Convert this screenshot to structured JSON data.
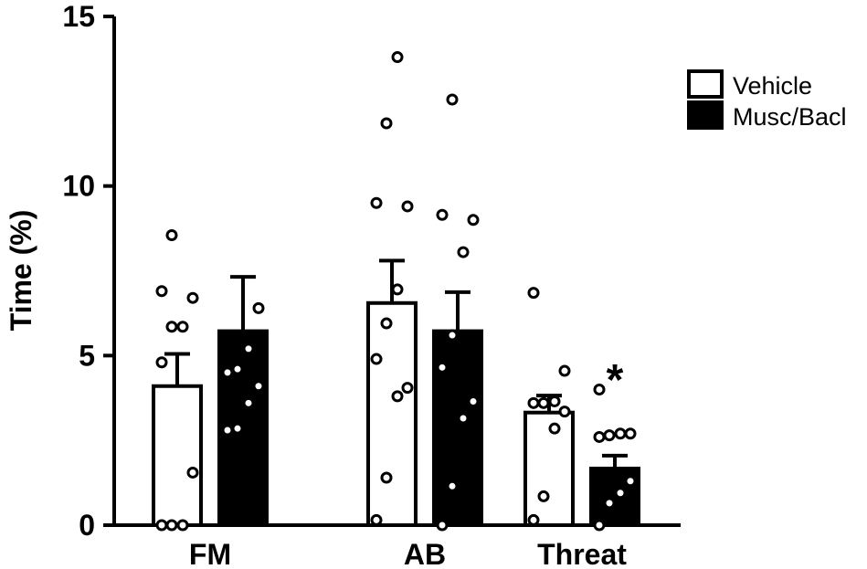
{
  "chart_data": {
    "type": "bar",
    "ylabel": "Time (%)",
    "xlabel": "",
    "ylim": [
      0,
      15
    ],
    "yticks": [
      0,
      5,
      10,
      15
    ],
    "categories": [
      "FM",
      "AB",
      "Threat"
    ],
    "series": [
      {
        "name": "Vehicle",
        "fill": "#ffffff",
        "values": [
          4.1,
          6.55,
          3.32
        ],
        "sem": [
          0.95,
          1.25,
          0.5
        ],
        "points": [
          [
            0,
            0,
            0,
            1.55,
            4.8,
            5.85,
            5.85,
            6.7,
            6.9,
            8.55
          ],
          [
            0.15,
            1.4,
            3.8,
            4.05,
            4.9,
            5.95,
            6.95,
            9.4,
            9.5,
            11.85,
            13.8
          ],
          [
            0.15,
            0.85,
            2.85,
            3.35,
            3.6,
            3.6,
            3.65,
            4.55,
            6.85
          ]
        ]
      },
      {
        "name": "Musc/Bacl",
        "fill": "#000000",
        "values": [
          5.72,
          5.72,
          1.67
        ],
        "sem": [
          1.6,
          1.15,
          0.38
        ],
        "points": [
          [
            2.8,
            2.85,
            3.6,
            4.1,
            4.5,
            4.6,
            5.2,
            6.4
          ],
          [
            0,
            1.15,
            3.15,
            3.65,
            4.65,
            5.6,
            8.05,
            9.0,
            9.15,
            12.55
          ],
          [
            0,
            0.65,
            0.95,
            1.3,
            2.6,
            2.65,
            2.7,
            2.7,
            4.0
          ]
        ]
      }
    ],
    "significance": [
      {
        "category": "Threat",
        "series": "Musc/Bacl",
        "label": "*"
      }
    ],
    "legend": {
      "position": "top-right"
    }
  }
}
